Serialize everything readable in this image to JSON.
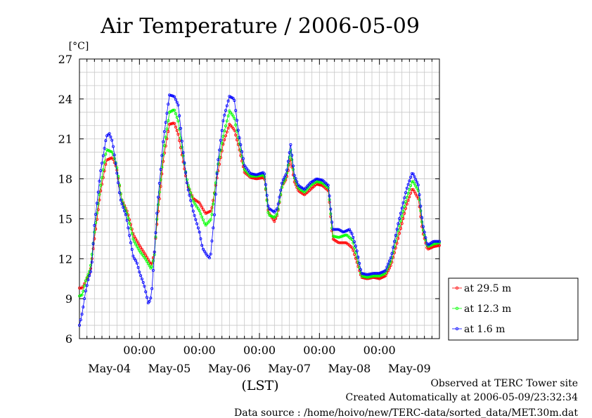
{
  "chart_data": {
    "type": "line",
    "title": "Air Temperature / 2006-05-09",
    "ylabel": "[°C]",
    "xlabel": "(LST)",
    "ylim": [
      6,
      27
    ],
    "xlim": [
      0,
      6
    ],
    "yticks": [
      6,
      9,
      12,
      15,
      18,
      21,
      24,
      27
    ],
    "time_ticks": [
      {
        "x": 1,
        "label": "00:00"
      },
      {
        "x": 2,
        "label": "00:00"
      },
      {
        "x": 3,
        "label": "00:00"
      },
      {
        "x": 4,
        "label": "00:00"
      },
      {
        "x": 5,
        "label": "00:00"
      }
    ],
    "date_labels": [
      {
        "x": 0.5,
        "label": "May-04"
      },
      {
        "x": 1.5,
        "label": "May-05"
      },
      {
        "x": 2.5,
        "label": "May-06"
      },
      {
        "x": 3.5,
        "label": "May-07"
      },
      {
        "x": 4.5,
        "label": "May-08"
      },
      {
        "x": 5.5,
        "label": "May-09"
      }
    ],
    "x_unit": "days since 2006-05-04 00:00 LST",
    "grid": true,
    "legend_position": "bottom-right outside",
    "series": [
      {
        "name": "at 29.5 m",
        "color": "#ff0000",
        "points": [
          [
            0,
            9.8
          ],
          [
            0.05,
            9.8
          ],
          [
            0.1,
            10.3
          ],
          [
            0.18,
            11
          ],
          [
            0.25,
            13.5
          ],
          [
            0.35,
            17
          ],
          [
            0.45,
            19.4
          ],
          [
            0.55,
            19.6
          ],
          [
            0.62,
            18.8
          ],
          [
            0.7,
            16.5
          ],
          [
            0.8,
            15.5
          ],
          [
            0.9,
            13.8
          ],
          [
            1.0,
            13
          ],
          [
            1.1,
            12.3
          ],
          [
            1.2,
            11.5
          ],
          [
            1.25,
            12.5
          ],
          [
            1.3,
            15
          ],
          [
            1.4,
            19.5
          ],
          [
            1.5,
            22.1
          ],
          [
            1.58,
            22.2
          ],
          [
            1.65,
            21.3
          ],
          [
            1.72,
            19.5
          ],
          [
            1.8,
            17.5
          ],
          [
            1.9,
            16.5
          ],
          [
            2.0,
            16.2
          ],
          [
            2.1,
            15.4
          ],
          [
            2.2,
            15.6
          ],
          [
            2.3,
            18.3
          ],
          [
            2.4,
            20.7
          ],
          [
            2.5,
            22.1
          ],
          [
            2.58,
            21.7
          ],
          [
            2.65,
            20.5
          ],
          [
            2.75,
            18.5
          ],
          [
            2.85,
            18.1
          ],
          [
            2.95,
            18
          ],
          [
            3.08,
            18.1
          ],
          [
            3.15,
            15.5
          ],
          [
            3.25,
            14.8
          ],
          [
            3.3,
            15.3
          ],
          [
            3.38,
            17.5
          ],
          [
            3.45,
            18
          ],
          [
            3.52,
            19.5
          ],
          [
            3.58,
            17.8
          ],
          [
            3.65,
            17.1
          ],
          [
            3.75,
            16.8
          ],
          [
            3.85,
            17.2
          ],
          [
            3.95,
            17.6
          ],
          [
            4.05,
            17.5
          ],
          [
            4.15,
            17.1
          ],
          [
            4.22,
            13.5
          ],
          [
            4.32,
            13.2
          ],
          [
            4.45,
            13.2
          ],
          [
            4.55,
            12.8
          ],
          [
            4.62,
            11.8
          ],
          [
            4.7,
            10.6
          ],
          [
            4.8,
            10.5
          ],
          [
            4.9,
            10.6
          ],
          [
            5.0,
            10.5
          ],
          [
            5.1,
            10.7
          ],
          [
            5.2,
            11.6
          ],
          [
            5.3,
            13.3
          ],
          [
            5.45,
            16
          ],
          [
            5.55,
            17.3
          ],
          [
            5.65,
            16.5
          ],
          [
            5.72,
            14
          ],
          [
            5.8,
            12.7
          ],
          [
            5.9,
            12.9
          ],
          [
            6.0,
            13
          ]
        ]
      },
      {
        "name": "at 12.3 m",
        "color": "#00ff00",
        "points": [
          [
            0,
            9.2
          ],
          [
            0.05,
            9.3
          ],
          [
            0.1,
            10.3
          ],
          [
            0.18,
            11.2
          ],
          [
            0.25,
            14
          ],
          [
            0.35,
            17.4
          ],
          [
            0.45,
            20.2
          ],
          [
            0.55,
            20
          ],
          [
            0.62,
            19
          ],
          [
            0.7,
            16.5
          ],
          [
            0.8,
            15.3
          ],
          [
            0.9,
            13.4
          ],
          [
            1.0,
            12.6
          ],
          [
            1.1,
            12
          ],
          [
            1.2,
            11.2
          ],
          [
            1.25,
            12.3
          ],
          [
            1.3,
            15.5
          ],
          [
            1.4,
            20
          ],
          [
            1.5,
            23
          ],
          [
            1.58,
            23.2
          ],
          [
            1.65,
            22.3
          ],
          [
            1.72,
            20
          ],
          [
            1.8,
            17.7
          ],
          [
            1.9,
            16.3
          ],
          [
            2.0,
            15.6
          ],
          [
            2.1,
            14.5
          ],
          [
            2.2,
            15
          ],
          [
            2.3,
            18.8
          ],
          [
            2.4,
            21.3
          ],
          [
            2.5,
            23.1
          ],
          [
            2.58,
            22.6
          ],
          [
            2.65,
            21
          ],
          [
            2.75,
            18.7
          ],
          [
            2.85,
            18.2
          ],
          [
            2.95,
            18.2
          ],
          [
            3.08,
            18.3
          ],
          [
            3.15,
            15.3
          ],
          [
            3.25,
            15.1
          ],
          [
            3.3,
            15.4
          ],
          [
            3.38,
            17.5
          ],
          [
            3.45,
            18.2
          ],
          [
            3.52,
            20.2
          ],
          [
            3.58,
            18.1
          ],
          [
            3.65,
            17.3
          ],
          [
            3.75,
            17
          ],
          [
            3.85,
            17.5
          ],
          [
            3.95,
            17.8
          ],
          [
            4.05,
            17.7
          ],
          [
            4.15,
            17.3
          ],
          [
            4.22,
            13.7
          ],
          [
            4.32,
            13.6
          ],
          [
            4.45,
            13.8
          ],
          [
            4.55,
            13.4
          ],
          [
            4.62,
            12.2
          ],
          [
            4.7,
            10.7
          ],
          [
            4.8,
            10.6
          ],
          [
            4.9,
            10.7
          ],
          [
            5.0,
            10.7
          ],
          [
            5.1,
            10.9
          ],
          [
            5.2,
            11.9
          ],
          [
            5.3,
            13.9
          ],
          [
            5.45,
            16.5
          ],
          [
            5.55,
            17.9
          ],
          [
            5.65,
            17.1
          ],
          [
            5.72,
            14.3
          ],
          [
            5.8,
            12.9
          ],
          [
            5.9,
            13.1
          ],
          [
            6.0,
            13.2
          ]
        ]
      },
      {
        "name": "at 1.6 m",
        "color": "#0000ff",
        "points": [
          [
            0,
            7
          ],
          [
            0.05,
            8
          ],
          [
            0.1,
            9.5
          ],
          [
            0.15,
            10.5
          ],
          [
            0.2,
            11.2
          ],
          [
            0.25,
            14.5
          ],
          [
            0.35,
            18.5
          ],
          [
            0.45,
            21.2
          ],
          [
            0.5,
            21.4
          ],
          [
            0.55,
            20.8
          ],
          [
            0.6,
            19.3
          ],
          [
            0.68,
            16.5
          ],
          [
            0.78,
            15.2
          ],
          [
            0.85,
            13.3
          ],
          [
            0.9,
            12.1
          ],
          [
            0.95,
            11.8
          ],
          [
            1.0,
            11
          ],
          [
            1.08,
            10
          ],
          [
            1.15,
            8.6
          ],
          [
            1.2,
            9.2
          ],
          [
            1.25,
            12.5
          ],
          [
            1.3,
            16
          ],
          [
            1.4,
            21
          ],
          [
            1.5,
            24.3
          ],
          [
            1.58,
            24.2
          ],
          [
            1.65,
            23.5
          ],
          [
            1.72,
            20.3
          ],
          [
            1.8,
            17.4
          ],
          [
            1.9,
            15.5
          ],
          [
            2.0,
            14
          ],
          [
            2.05,
            12.8
          ],
          [
            2.12,
            12.3
          ],
          [
            2.18,
            12
          ],
          [
            2.25,
            15.3
          ],
          [
            2.3,
            19
          ],
          [
            2.4,
            22.5
          ],
          [
            2.5,
            24.2
          ],
          [
            2.58,
            24
          ],
          [
            2.65,
            21.5
          ],
          [
            2.75,
            19
          ],
          [
            2.85,
            18.4
          ],
          [
            2.95,
            18.3
          ],
          [
            3.08,
            18.5
          ],
          [
            3.15,
            15.8
          ],
          [
            3.25,
            15.5
          ],
          [
            3.3,
            15.8
          ],
          [
            3.38,
            17.8
          ],
          [
            3.45,
            18.4
          ],
          [
            3.52,
            20.6
          ],
          [
            3.58,
            18.3
          ],
          [
            3.65,
            17.5
          ],
          [
            3.75,
            17.2
          ],
          [
            3.85,
            17.7
          ],
          [
            3.95,
            18
          ],
          [
            4.05,
            17.9
          ],
          [
            4.15,
            17.5
          ],
          [
            4.22,
            14.2
          ],
          [
            4.32,
            14.2
          ],
          [
            4.4,
            14
          ],
          [
            4.5,
            14.2
          ],
          [
            4.55,
            13.8
          ],
          [
            4.62,
            12.7
          ],
          [
            4.7,
            10.9
          ],
          [
            4.8,
            10.8
          ],
          [
            4.9,
            10.9
          ],
          [
            5.0,
            10.9
          ],
          [
            5.1,
            11.1
          ],
          [
            5.2,
            12.2
          ],
          [
            5.3,
            14.4
          ],
          [
            5.45,
            17.2
          ],
          [
            5.55,
            18.5
          ],
          [
            5.65,
            17.5
          ],
          [
            5.72,
            14.6
          ],
          [
            5.8,
            13
          ],
          [
            5.9,
            13.3
          ],
          [
            6.0,
            13.3
          ]
        ]
      }
    ]
  },
  "footer": {
    "observed": "Observed at TERC Tower site",
    "created": "Created Automatically at 2006-05-09/23:32:34",
    "source": "Data source : /home/hoivo/new/TERC-data/sorted_data/MET.30m.dat"
  }
}
